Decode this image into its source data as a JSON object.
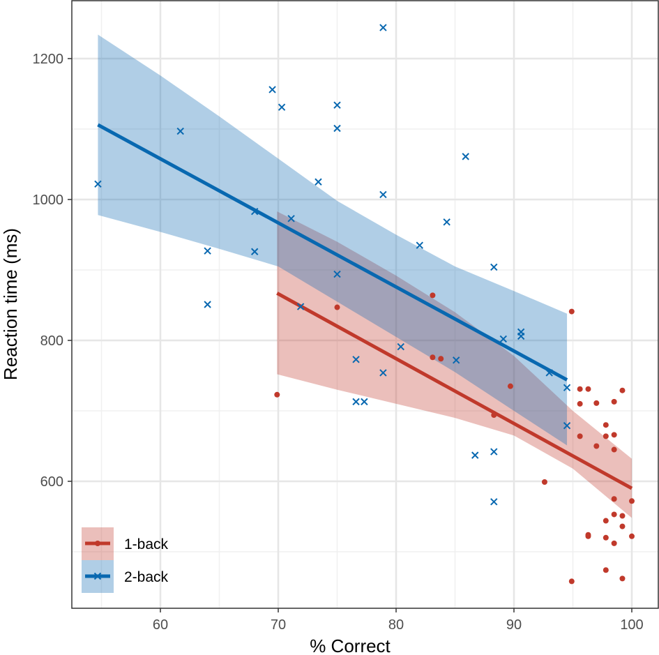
{
  "chart_data": {
    "type": "scatter",
    "title": "",
    "xlabel": "% Correct",
    "ylabel": "Reaction time (ms)",
    "xlim": [
      52.5,
      102.2
    ],
    "ylim": [
      430,
      1280
    ],
    "x_ticks": [
      60,
      70,
      80,
      90,
      100
    ],
    "y_ticks": [
      600,
      800,
      1000,
      1200
    ],
    "x_minor_grid": [
      55,
      65,
      75,
      85,
      95
    ],
    "y_minor_grid": [
      500,
      700,
      900,
      1100
    ],
    "grid": true,
    "legend_position": "bottom-left",
    "series": [
      {
        "name": "1-back",
        "color": "#C0392B",
        "ribbon_color": "#E8B6B3",
        "marker": "dot",
        "points": [
          [
            69.9,
            723
          ],
          [
            75.0,
            847
          ],
          [
            83.1,
            864
          ],
          [
            83.1,
            776
          ],
          [
            83.8,
            774
          ],
          [
            88.3,
            694
          ],
          [
            89.7,
            735
          ],
          [
            92.6,
            599
          ],
          [
            94.9,
            841
          ],
          [
            94.9,
            458
          ],
          [
            95.6,
            731
          ],
          [
            95.6,
            710
          ],
          [
            95.6,
            664
          ],
          [
            96.3,
            731
          ],
          [
            96.3,
            524
          ],
          [
            96.3,
            522
          ],
          [
            97.0,
            711
          ],
          [
            97.0,
            650
          ],
          [
            97.8,
            680
          ],
          [
            97.8,
            664
          ],
          [
            97.8,
            544
          ],
          [
            97.8,
            520
          ],
          [
            97.8,
            474
          ],
          [
            98.5,
            713
          ],
          [
            98.5,
            666
          ],
          [
            98.5,
            645
          ],
          [
            98.5,
            575
          ],
          [
            98.5,
            553
          ],
          [
            98.5,
            512
          ],
          [
            99.2,
            729
          ],
          [
            99.2,
            551
          ],
          [
            99.2,
            536
          ],
          [
            99.2,
            462
          ],
          [
            100.0,
            572
          ],
          [
            100.0,
            522
          ]
        ],
        "fit_line": [
          [
            69.9,
            867
          ],
          [
            100.0,
            590
          ]
        ],
        "ribbon_upper": [
          [
            69.9,
            983
          ],
          [
            75,
            940
          ],
          [
            80,
            892
          ],
          [
            85,
            840
          ],
          [
            90,
            778
          ],
          [
            95,
            700
          ],
          [
            100,
            632
          ]
        ],
        "ribbon_lower": [
          [
            69.9,
            752
          ],
          [
            75,
            730
          ],
          [
            80,
            710
          ],
          [
            85,
            690
          ],
          [
            90,
            665
          ],
          [
            95,
            618
          ],
          [
            100,
            548
          ]
        ]
      },
      {
        "name": "2-back",
        "color": "#0868B0",
        "ribbon_color": "#AFCBE3",
        "marker": "x",
        "points": [
          [
            54.7,
            1022
          ],
          [
            61.7,
            1097
          ],
          [
            64.0,
            927
          ],
          [
            64.0,
            851
          ],
          [
            68.0,
            983
          ],
          [
            68.0,
            926
          ],
          [
            69.5,
            1156
          ],
          [
            70.3,
            1131
          ],
          [
            71.1,
            973
          ],
          [
            71.9,
            848
          ],
          [
            73.4,
            1025
          ],
          [
            75.0,
            1134
          ],
          [
            75.0,
            1101
          ],
          [
            75.0,
            894
          ],
          [
            76.6,
            773
          ],
          [
            76.6,
            713
          ],
          [
            77.3,
            713
          ],
          [
            78.9,
            1244
          ],
          [
            78.9,
            1007
          ],
          [
            78.9,
            754
          ],
          [
            80.4,
            791
          ],
          [
            82.0,
            935
          ],
          [
            84.3,
            968
          ],
          [
            85.1,
            772
          ],
          [
            85.9,
            1061
          ],
          [
            86.7,
            637
          ],
          [
            88.3,
            904
          ],
          [
            88.3,
            642
          ],
          [
            88.3,
            571
          ],
          [
            89.1,
            802
          ],
          [
            90.6,
            812
          ],
          [
            90.6,
            806
          ],
          [
            93.0,
            754
          ],
          [
            94.5,
            733
          ],
          [
            94.5,
            679
          ]
        ],
        "fit_line": [
          [
            54.7,
            1106
          ],
          [
            94.5,
            744
          ]
        ],
        "ribbon_upper": [
          [
            54.7,
            1234
          ],
          [
            60,
            1176
          ],
          [
            65,
            1118
          ],
          [
            70,
            1058
          ],
          [
            75,
            998
          ],
          [
            80,
            950
          ],
          [
            85,
            905
          ],
          [
            90,
            870
          ],
          [
            94.5,
            838
          ]
        ],
        "ribbon_lower": [
          [
            54.7,
            978
          ],
          [
            60,
            954
          ],
          [
            65,
            930
          ],
          [
            70,
            905
          ],
          [
            75,
            855
          ],
          [
            80,
            805
          ],
          [
            85,
            755
          ],
          [
            90,
            700
          ],
          [
            94.5,
            651
          ]
        ]
      }
    ]
  }
}
